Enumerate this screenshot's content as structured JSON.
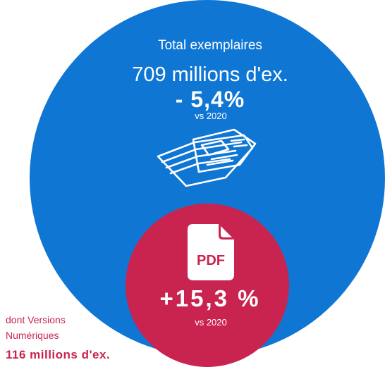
{
  "total": {
    "label": "Total exemplaires",
    "value": "709 millions d'ex.",
    "change": "- 5,4%",
    "vs": "vs 2020"
  },
  "digital": {
    "icon_label": "PDF",
    "change": "+15,3 %",
    "vs": "vs 2020",
    "note_line1": "dont Versions",
    "note_line2": "Numériques",
    "note_value": "116 millions d'ex."
  },
  "colors": {
    "total_circle": "#0f76d4",
    "digital_circle": "#c8244f",
    "text_on_circle": "#ffffff"
  },
  "icons": [
    "newspaper-icon",
    "pdf-file-icon"
  ]
}
